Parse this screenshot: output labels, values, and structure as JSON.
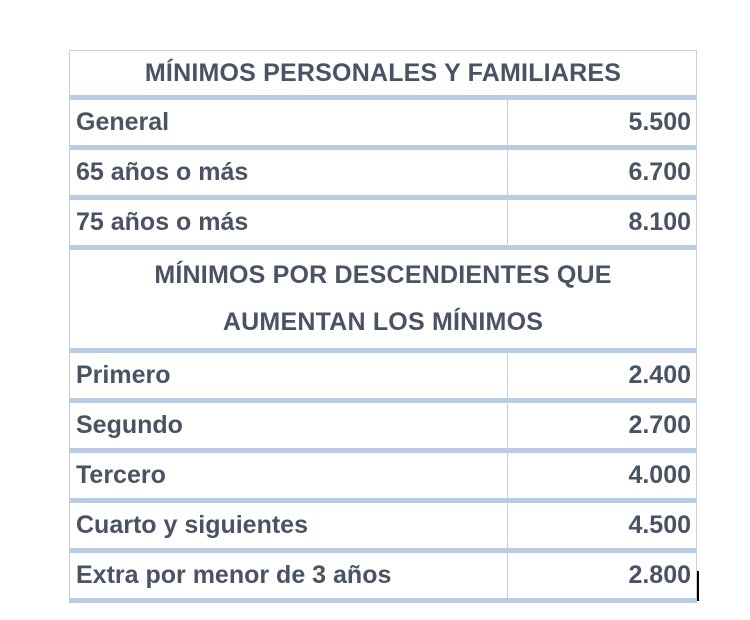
{
  "section_1": {
    "title": "MÍNIMOS PERSONALES Y FAMILIARES",
    "rows": [
      {
        "label": "General",
        "value": "5.500"
      },
      {
        "label": "65 años o más",
        "value": "6.700"
      },
      {
        "label": "75 años o más",
        "value": "8.100"
      }
    ]
  },
  "section_2": {
    "title_line_1": "MÍNIMOS POR DESCENDIENTES QUE",
    "title_line_2": "AUMENTAN LOS MÍNIMOS",
    "rows": [
      {
        "label": "Primero",
        "value": "2.400"
      },
      {
        "label": "Segundo",
        "value": "2.700"
      },
      {
        "label": "Tercero",
        "value": "4.000"
      },
      {
        "label": "Cuarto y siguientes",
        "value": "4.500"
      },
      {
        "label": "Extra por menor de 3 años",
        "value": "2.800"
      }
    ]
  },
  "colors": {
    "text": "#4a5363",
    "separator": "#b8cce4",
    "grid": "#c9ced6"
  }
}
